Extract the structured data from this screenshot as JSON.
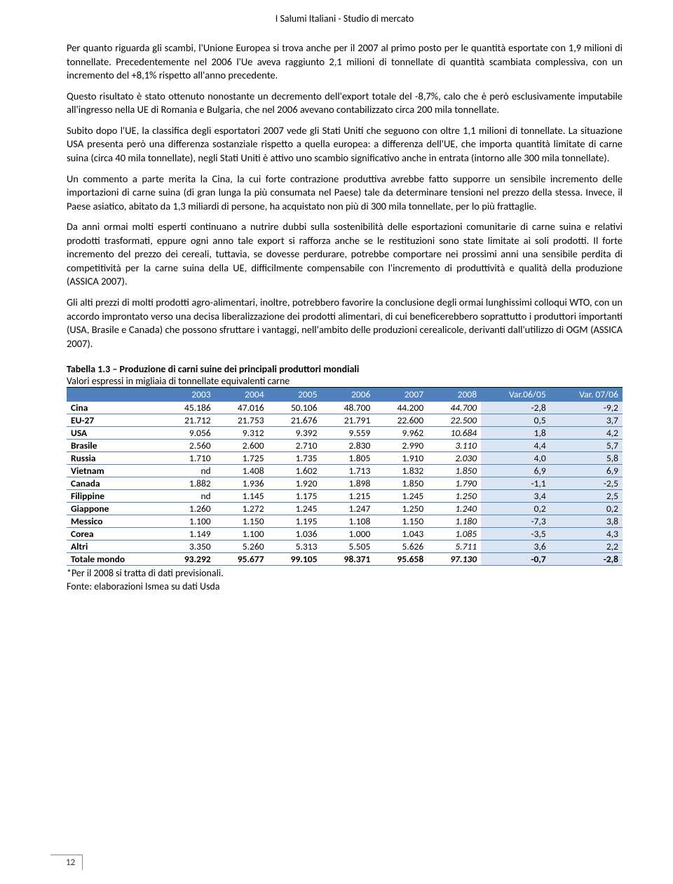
{
  "header": "I Salumi Italiani - Studio di mercato",
  "paragraphs": [
    "Per quanto riguarda gli scambi, l'Unione Europea si trova anche per il 2007 al primo posto per le quantità esportate con 1,9 milioni di tonnellate. Precedentemente nel 2006 l'Ue aveva raggiunto 2,1 milioni di tonnellate di quantità scambiata complessiva, con un incremento del +8,1% rispetto all'anno precedente.",
    "Questo risultato è stato ottenuto nonostante un decremento dell'export totale del -8,7%, calo che è però esclusivamente imputabile all'ingresso nella UE di Romania e Bulgaria, che nel 2006 avevano contabilizzato circa 200 mila tonnellate.",
    "Subito dopo l'UE, la classifica degli esportatori 2007 vede gli Stati Uniti che seguono con oltre 1,1 milioni di tonnellate. La situazione USA presenta però una differenza sostanziale rispetto a quella europea: a differenza dell'UE, che importa quantità limitate di carne suina (circa 40 mila tonnellate), negli Stati Uniti è attivo uno scambio significativo anche in entrata (intorno alle 300 mila tonnellate).",
    "Un commento a parte merita la Cina, la cui forte contrazione produttiva avrebbe fatto supporre un sensibile incremento delle importazioni di carne suina (di gran lunga la più consumata nel Paese) tale da determinare tensioni nel prezzo della stessa. Invece, il Paese asiatico, abitato da 1,3 miliardi di persone, ha acquistato non più di 300 mila tonnellate, per lo più frattaglie.",
    "Da anni ormai molti esperti continuano a nutrire dubbi sulla sostenibilità delle esportazioni comunitarie di carne suina e relativi prodotti trasformati, eppure ogni anno tale export si rafforza anche se le restituzioni sono state limitate ai soli prodotti. Il forte incremento del prezzo dei cereali, tuttavia, se dovesse perdurare, potrebbe comportare nei prossimi anni una sensibile perdita di competitività per la carne suina della UE, difficilmente compensabile con l'incremento di produttività e qualità della produzione (ASSICA 2007).",
    "Gli alti prezzi di molti prodotti agro-alimentari, inoltre, potrebbero favorire la conclusione degli ormai lunghissimi colloqui WTO, con un accordo improntato verso una decisa liberalizzazione dei prodotti alimentari, di cui beneficerebbero soprattutto i produttori importanti (USA, Brasile e Canada) che possono sfruttare i vantaggi, nell'ambito delle produzioni cerealicole, derivanti dall'utilizzo di OGM (ASSICA 2007)."
  ],
  "table": {
    "title": "Tabella 1.3 – Produzione di carni suine dei principali produttori mondiali",
    "subtitle": "Valori espressi in migliaia di tonnellate equivalenti carne",
    "columns": [
      "",
      "2003",
      "2004",
      "2005",
      "2006",
      "2007",
      "2008",
      "Var.06/05",
      "Var. 07/06"
    ],
    "rows": [
      {
        "label": "Cina",
        "v": [
          "45.186",
          "47.016",
          "50.106",
          "48.700",
          "44.200",
          "44.700",
          "-2,8",
          "-9,2"
        ]
      },
      {
        "label": "EU-27",
        "v": [
          "21.712",
          "21.753",
          "21.676",
          "21.791",
          "22.600",
          "22.500",
          "0,5",
          "3,7"
        ]
      },
      {
        "label": "USA",
        "v": [
          "9.056",
          "9.312",
          "9.392",
          "9.559",
          "9.962",
          "10.684",
          "1,8",
          "4,2"
        ]
      },
      {
        "label": "Brasile",
        "v": [
          "2.560",
          "2.600",
          "2.710",
          "2.830",
          "2.990",
          "3.110",
          "4,4",
          "5,7"
        ]
      },
      {
        "label": "Russia",
        "v": [
          "1.710",
          "1.725",
          "1.735",
          "1.805",
          "1.910",
          "2.030",
          "4,0",
          "5,8"
        ]
      },
      {
        "label": "Vietnam",
        "v": [
          "nd",
          "1.408",
          "1.602",
          "1.713",
          "1.832",
          "1.850",
          "6,9",
          "6,9"
        ]
      },
      {
        "label": "Canada",
        "v": [
          "1.882",
          "1.936",
          "1.920",
          "1.898",
          "1.850",
          "1.790",
          "-1,1",
          "-2,5"
        ]
      },
      {
        "label": "Filippine",
        "v": [
          "nd",
          "1.145",
          "1.175",
          "1.215",
          "1.245",
          "1.250",
          "3,4",
          "2,5"
        ]
      },
      {
        "label": "Giappone",
        "v": [
          "1.260",
          "1.272",
          "1.245",
          "1.247",
          "1.250",
          "1.240",
          "0,2",
          "0,2"
        ]
      },
      {
        "label": "Messico",
        "v": [
          "1.100",
          "1.150",
          "1.195",
          "1.108",
          "1.150",
          "1.180",
          "-7,3",
          "3,8"
        ]
      },
      {
        "label": "Corea",
        "v": [
          "1.149",
          "1.100",
          "1.036",
          "1.000",
          "1.043",
          "1.085",
          "-3,5",
          "4,3"
        ]
      },
      {
        "label": "Altri",
        "v": [
          "3.350",
          "5.260",
          "5.313",
          "5.505",
          "5.626",
          "5.711",
          "3,6",
          "2,2"
        ]
      },
      {
        "label": "Totale mondo",
        "v": [
          "93.292",
          "95.677",
          "99.105",
          "98.371",
          "95.658",
          "97.130",
          "-0,7",
          "-2,8"
        ],
        "total": true
      }
    ],
    "footnote1": "*Per il 2008 si tratta di dati previsionali.",
    "footnote2": "Fonte: elaborazioni Ismea su dati Usda"
  },
  "page_number": "12"
}
